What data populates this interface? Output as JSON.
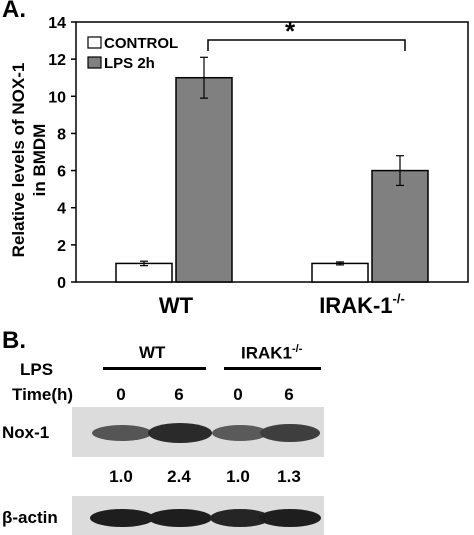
{
  "panel_a": {
    "label": "A.",
    "significance": "*",
    "conditions": [
      "WT",
      "IRAK-1"
    ],
    "condition_superscript": "-/-"
  },
  "chart_data": {
    "type": "bar",
    "categories": [
      "WT",
      "IRAK-1-/-"
    ],
    "series": [
      {
        "name": "CONTROL",
        "values": [
          1.0,
          1.0
        ],
        "errors": [
          0.12,
          0.08
        ],
        "color": "#ffffff"
      },
      {
        "name": "LPS 2h",
        "values": [
          11.0,
          6.0
        ],
        "errors": [
          1.1,
          0.8
        ],
        "color": "#808080"
      }
    ],
    "title": "",
    "xlabel": "",
    "ylabel": "Relative levels of NOX-1 in BMDM",
    "ylim": [
      0,
      14
    ],
    "yticks": [
      0,
      2,
      4,
      6,
      8,
      10,
      12,
      14
    ],
    "legend_position": "top-left",
    "grid": false
  },
  "panel_b": {
    "label": "B.",
    "groups": [
      {
        "label": "WT"
      },
      {
        "label": "IRAK1",
        "superscript": "-/-"
      }
    ],
    "row_lps": "LPS",
    "row_time": "Time(h)",
    "times": [
      "0",
      "6",
      "0",
      "6"
    ],
    "nox_label": "Nox-1",
    "nox_values": [
      "1.0",
      "2.4",
      "1.0",
      "1.3"
    ],
    "actin_label": "β-actin"
  }
}
